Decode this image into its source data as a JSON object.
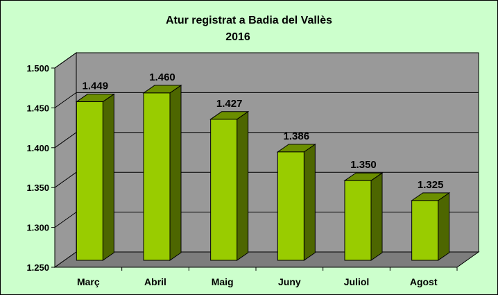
{
  "chart_data": {
    "type": "bar",
    "title": "Atur registrat a Badia del Vallès",
    "subtitle": "2016",
    "categories": [
      "Març",
      "Abril",
      "Maig",
      "Juny",
      "Juliol",
      "Agost"
    ],
    "values": [
      1449,
      1460,
      1427,
      1386,
      1350,
      1325
    ],
    "value_labels": [
      "1.449",
      "1.460",
      "1.427",
      "1.386",
      "1.350",
      "1.325"
    ],
    "y_ticks": [
      1250,
      1300,
      1350,
      1400,
      1450,
      1500
    ],
    "y_tick_labels": [
      "1.250",
      "1.300",
      "1.350",
      "1.400",
      "1.450",
      "1.500"
    ],
    "ylim": [
      1250,
      1500
    ],
    "xlabel": "",
    "ylabel": "",
    "grid": true,
    "legend": "none",
    "colors": {
      "chart_background": "#ccffcc",
      "plot_wall": "#999999",
      "plot_floor": "#7d7d7d",
      "bar_front": "#99cc00",
      "bar_side": "#4d6600",
      "bar_top": "#6b8e00",
      "gridline": "#000000",
      "frame": "#000000"
    }
  }
}
